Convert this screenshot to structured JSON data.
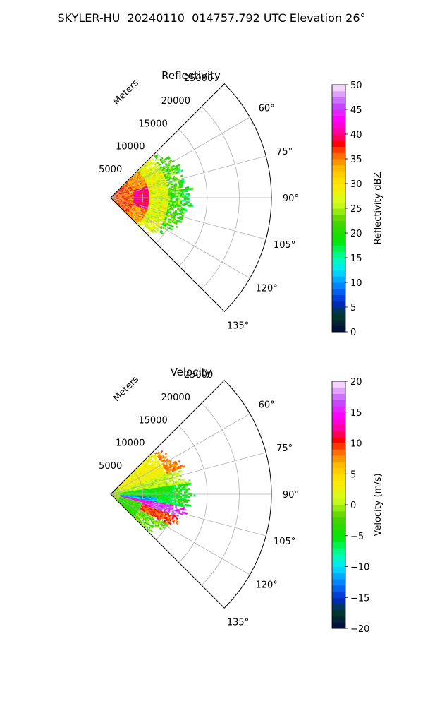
{
  "title": "SKYLER-HU  20240110  014757.792 UTC Elevation 26°",
  "chart_data": [
    {
      "type": "heatmap",
      "projection": "polar-sector",
      "title": "Reflectivity",
      "range_label": "Meters",
      "angle_range_deg": [
        45,
        135
      ],
      "range_ticks": [
        5000,
        10000,
        15000,
        20000,
        25000
      ],
      "range_tick_labels": [
        "5000",
        "10000",
        "15000",
        "20000",
        "25000"
      ],
      "angle_ticks": [
        60,
        75,
        90,
        105,
        120,
        135
      ],
      "angle_tick_labels": [
        "60°",
        "75°",
        "90°",
        "105°",
        "120°",
        "135°"
      ],
      "rmax": 25000,
      "grid": true,
      "colorbar": {
        "label": "Reflectivity dBZ",
        "range": [
          0,
          50
        ],
        "ticks": [
          0,
          5,
          10,
          15,
          20,
          25,
          30,
          35,
          40,
          45,
          50
        ],
        "tick_labels": [
          "0",
          "5",
          "10",
          "15",
          "20",
          "25",
          "30",
          "35",
          "40",
          "45",
          "50"
        ]
      }
    },
    {
      "type": "heatmap",
      "projection": "polar-sector",
      "title": "Velocity",
      "range_label": "Meters",
      "angle_range_deg": [
        45,
        135
      ],
      "range_ticks": [
        5000,
        10000,
        15000,
        20000,
        25000
      ],
      "range_tick_labels": [
        "5000",
        "10000",
        "15000",
        "20000",
        "25000"
      ],
      "angle_ticks": [
        60,
        75,
        90,
        105,
        120,
        135
      ],
      "angle_tick_labels": [
        "60°",
        "75°",
        "90°",
        "105°",
        "120°",
        "135°"
      ],
      "rmax": 25000,
      "grid": true,
      "colorbar": {
        "label": "Velocity (m/s)",
        "range": [
          -20,
          20
        ],
        "ticks": [
          -20,
          -15,
          -10,
          -5,
          0,
          5,
          10,
          15,
          20
        ],
        "tick_labels": [
          "−20",
          "−15",
          "−10",
          "−5",
          "0",
          "5",
          "10",
          "15",
          "20"
        ]
      }
    }
  ]
}
